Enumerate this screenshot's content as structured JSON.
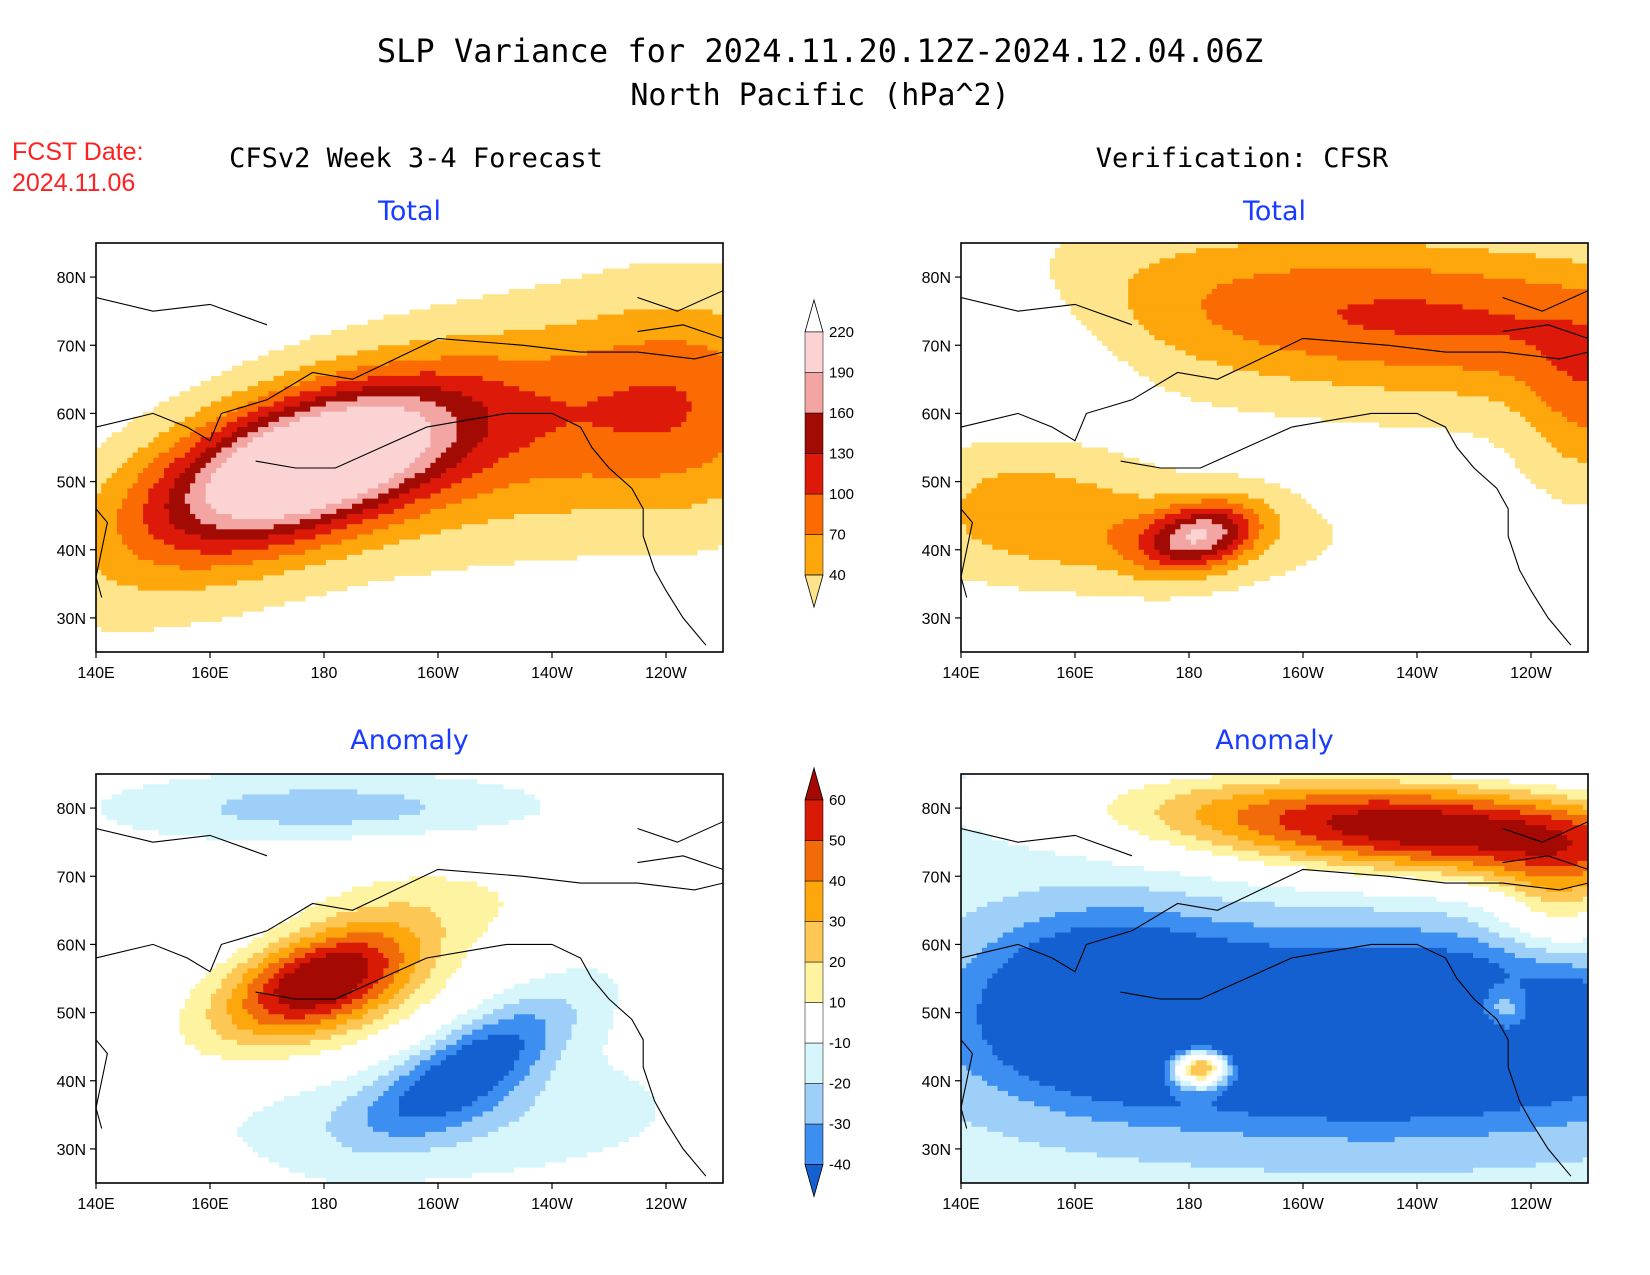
{
  "header": {
    "title_line1": "SLP Variance for 2024.11.20.12Z-2024.12.04.06Z",
    "title_line2": "North Pacific (hPa^2)",
    "fcst_label": "FCST Date:",
    "fcst_date": "2024.11.06",
    "left_heading": "CFSv2 Week 3-4 Forecast",
    "right_heading": "Verification: CFSR"
  },
  "colors": {
    "title_text": "#000000",
    "fcst_text": "#ff2020",
    "panel_title": "#1a3cff"
  },
  "chart_data": [
    {
      "type": "heatmap",
      "title": "Total",
      "source": "CFSv2 Week 3-4 Forecast",
      "x_ticks": [
        "140E",
        "160E",
        "180",
        "160W",
        "140W",
        "120W"
      ],
      "y_ticks": [
        "30N",
        "40N",
        "50N",
        "60N",
        "70N",
        "80N"
      ],
      "xlim": [
        140,
        250
      ],
      "ylim": [
        25,
        85
      ],
      "levels": [
        40,
        70,
        100,
        130,
        160,
        190,
        220
      ],
      "max_approx": 250,
      "center_of_max": {
        "lon": 178,
        "lat": 52
      }
    },
    {
      "type": "heatmap",
      "title": "Total",
      "source": "Verification: CFSR",
      "x_ticks": [
        "140E",
        "160E",
        "180",
        "160W",
        "140W",
        "120W"
      ],
      "y_ticks": [
        "30N",
        "40N",
        "50N",
        "60N",
        "70N",
        "80N"
      ],
      "xlim": [
        140,
        250
      ],
      "ylim": [
        25,
        85
      ],
      "levels": [
        40,
        70,
        100,
        130,
        160,
        190,
        220
      ],
      "max_approx": 170,
      "center_of_max": {
        "lon": 182,
        "lat": 42
      }
    },
    {
      "type": "heatmap",
      "title": "Anomaly",
      "source": "CFSv2 Week 3-4 Forecast",
      "x_ticks": [
        "140E",
        "160E",
        "180",
        "160W",
        "140W",
        "120W"
      ],
      "y_ticks": [
        "30N",
        "40N",
        "50N",
        "60N",
        "70N",
        "80N"
      ],
      "xlim": [
        140,
        250
      ],
      "ylim": [
        25,
        85
      ],
      "levels": [
        -40,
        -30,
        -20,
        -10,
        10,
        20,
        30,
        40,
        50,
        60
      ],
      "max_approx": 60,
      "min_approx": -45
    },
    {
      "type": "heatmap",
      "title": "Anomaly",
      "source": "Verification: CFSR",
      "x_ticks": [
        "140E",
        "160E",
        "180",
        "160W",
        "140W",
        "120W"
      ],
      "y_ticks": [
        "30N",
        "40N",
        "50N",
        "60N",
        "70N",
        "80N"
      ],
      "xlim": [
        140,
        250
      ],
      "ylim": [
        25,
        85
      ],
      "levels": [
        -40,
        -30,
        -20,
        -10,
        10,
        20,
        30,
        40,
        50,
        60
      ],
      "max_approx": 75,
      "min_approx": -50
    }
  ],
  "colorbars": {
    "total": {
      "labels": [
        "40",
        "70",
        "100",
        "130",
        "160",
        "190",
        "220"
      ],
      "colors": [
        "#fee48a",
        "#fda70c",
        "#fb6b04",
        "#dd1a0a",
        "#a20b04",
        "#f2a5a3",
        "#fbd3d3",
        "#ffffff"
      ]
    },
    "anomaly": {
      "labels": [
        "-40",
        "-30",
        "-20",
        "-10",
        "10",
        "20",
        "30",
        "40",
        "50",
        "60"
      ],
      "colors": [
        "#1560d0",
        "#3c8ef0",
        "#9ecff8",
        "#d6f6fb",
        "#ffffff",
        "#fdf3a0",
        "#fdc755",
        "#fda70c",
        "#f26b0a",
        "#d91b06",
        "#a40a03"
      ]
    }
  }
}
